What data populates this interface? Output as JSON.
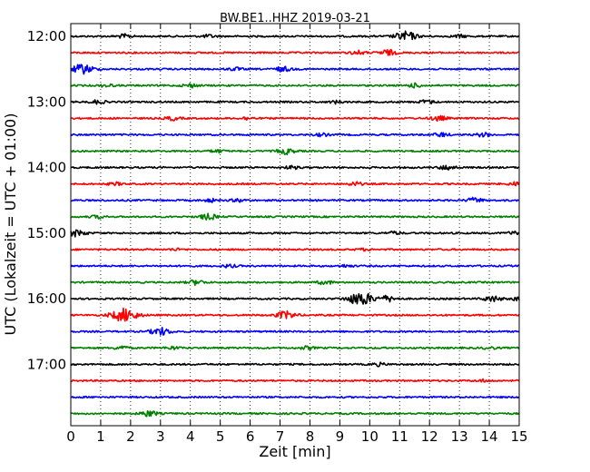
{
  "chart_data": {
    "type": "line",
    "title": "BW.BE1..HHZ 2019-03-21",
    "xlabel": "Zeit  [min]",
    "ylabel": "UTC (Lokalzeit = UTC + 01:00)",
    "xlim": [
      0,
      15
    ],
    "x_ticks": [
      "0",
      "1",
      "2",
      "3",
      "4",
      "5",
      "6",
      "7",
      "8",
      "9",
      "10",
      "11",
      "12",
      "13",
      "14",
      "15"
    ],
    "y_tick_labels": [
      "12:00",
      "13:00",
      "14:00",
      "15:00",
      "16:00",
      "17:00"
    ],
    "grid": "vertical dotted",
    "trace_colors": [
      "#000000",
      "#ff0000",
      "#0000ff",
      "#008000"
    ],
    "traces": [
      {
        "start": "12:00",
        "events": [
          [
            1.8,
            2
          ],
          [
            4.6,
            1.5
          ],
          [
            11.2,
            5
          ],
          [
            13.0,
            1.5
          ]
        ]
      },
      {
        "start": "12:15",
        "events": [
          [
            9.6,
            2
          ],
          [
            10.6,
            3
          ]
        ]
      },
      {
        "start": "12:30",
        "events": [
          [
            0.4,
            5
          ],
          [
            5.5,
            1.5
          ],
          [
            7.1,
            2.5
          ]
        ]
      },
      {
        "start": "12:45",
        "events": [
          [
            1.2,
            1.5
          ],
          [
            4.0,
            2
          ],
          [
            11.5,
            2
          ]
        ]
      },
      {
        "start": "13:00",
        "events": [
          [
            0.9,
            2
          ],
          [
            8.9,
            1.5
          ],
          [
            11.9,
            2
          ]
        ]
      },
      {
        "start": "13:15",
        "events": [
          [
            3.4,
            2
          ],
          [
            5.9,
            1.5
          ],
          [
            12.3,
            2.5
          ]
        ]
      },
      {
        "start": "13:30",
        "events": [
          [
            8.4,
            1.5
          ],
          [
            12.4,
            2
          ],
          [
            13.8,
            2
          ]
        ]
      },
      {
        "start": "13:45",
        "events": [
          [
            4.9,
            1.5
          ],
          [
            7.2,
            3
          ]
        ]
      },
      {
        "start": "14:00",
        "events": [
          [
            7.4,
            1.5
          ],
          [
            12.6,
            2.5
          ]
        ]
      },
      {
        "start": "14:15",
        "events": [
          [
            1.5,
            1.5
          ],
          [
            9.5,
            2
          ],
          [
            14.9,
            2
          ]
        ]
      },
      {
        "start": "14:30",
        "events": [
          [
            4.7,
            1.5
          ],
          [
            5.6,
            1.5
          ],
          [
            13.5,
            2.5
          ]
        ]
      },
      {
        "start": "14:45",
        "events": [
          [
            4.6,
            3
          ],
          [
            0.9,
            1.5
          ]
        ]
      },
      {
        "start": "15:00",
        "events": [
          [
            0.2,
            3.5
          ],
          [
            10.8,
            1.5
          ],
          [
            14.8,
            1.5
          ]
        ]
      },
      {
        "start": "15:15",
        "events": [
          [
            3.5,
            1
          ],
          [
            9.8,
            1
          ]
        ]
      },
      {
        "start": "15:30",
        "events": [
          [
            5.3,
            1.5
          ],
          [
            9.2,
            1.2
          ]
        ]
      },
      {
        "start": "15:45",
        "events": [
          [
            4.2,
            2.5
          ],
          [
            8.5,
            2
          ]
        ]
      },
      {
        "start": "16:00",
        "events": [
          [
            9.7,
            7
          ],
          [
            10.6,
            3
          ],
          [
            14.1,
            3
          ],
          [
            15.0,
            2
          ]
        ]
      },
      {
        "start": "16:15",
        "events": [
          [
            1.8,
            7
          ],
          [
            7.2,
            4
          ]
        ]
      },
      {
        "start": "16:30",
        "events": [
          [
            3.0,
            4
          ]
        ]
      },
      {
        "start": "16:45",
        "events": [
          [
            1.7,
            2
          ],
          [
            3.4,
            1.5
          ],
          [
            7.9,
            1.5
          ],
          [
            14.0,
            1.2
          ]
        ]
      },
      {
        "start": "17:00",
        "events": [
          [
            10.3,
            1.5
          ]
        ]
      },
      {
        "start": "17:15",
        "events": [
          [
            13.8,
            1.2
          ]
        ]
      },
      {
        "start": "17:30",
        "events": []
      },
      {
        "start": "17:45",
        "events": [
          [
            2.6,
            3
          ]
        ]
      }
    ]
  }
}
